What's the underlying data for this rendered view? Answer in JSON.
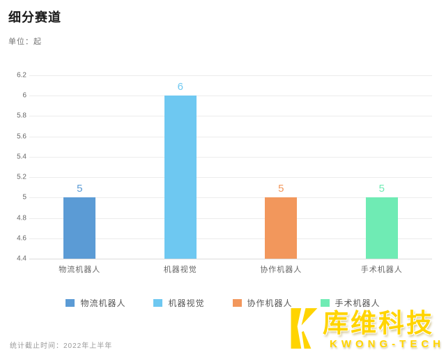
{
  "header": {
    "title": "细分赛道",
    "subtitle": "单位：起"
  },
  "chart_data": {
    "type": "bar",
    "title": "细分赛道",
    "unit": "单位：起",
    "categories": [
      "物流机器人",
      "机器视觉",
      "协作机器人",
      "手术机器人"
    ],
    "values": [
      5,
      6,
      5,
      5
    ],
    "colors": [
      "#5B9BD5",
      "#6EC8F1",
      "#F2975C",
      "#6FEBB4"
    ],
    "ylim": [
      4.4,
      6.2
    ],
    "ytick_step": 0.2,
    "ytick_labels": [
      "4.4",
      "4.6",
      "4.8",
      "5",
      "5.2",
      "5.4",
      "5.6",
      "5.8",
      "6",
      "6.2"
    ],
    "grid": true,
    "legend_position": "bottom",
    "xlabel": "",
    "ylabel": ""
  },
  "legend": {
    "items": [
      {
        "label": "物流机器人",
        "color": "#5B9BD5"
      },
      {
        "label": "机器视觉",
        "color": "#6EC8F1"
      },
      {
        "label": "协作机器人",
        "color": "#F2975C"
      },
      {
        "label": "手术机器人",
        "color": "#6FEBB4"
      }
    ]
  },
  "footer": {
    "note": "统计截止时间：2022年上半年"
  },
  "logo": {
    "cn": "库维科技",
    "en": "KWONG-TECH",
    "color": "#FFD400"
  }
}
